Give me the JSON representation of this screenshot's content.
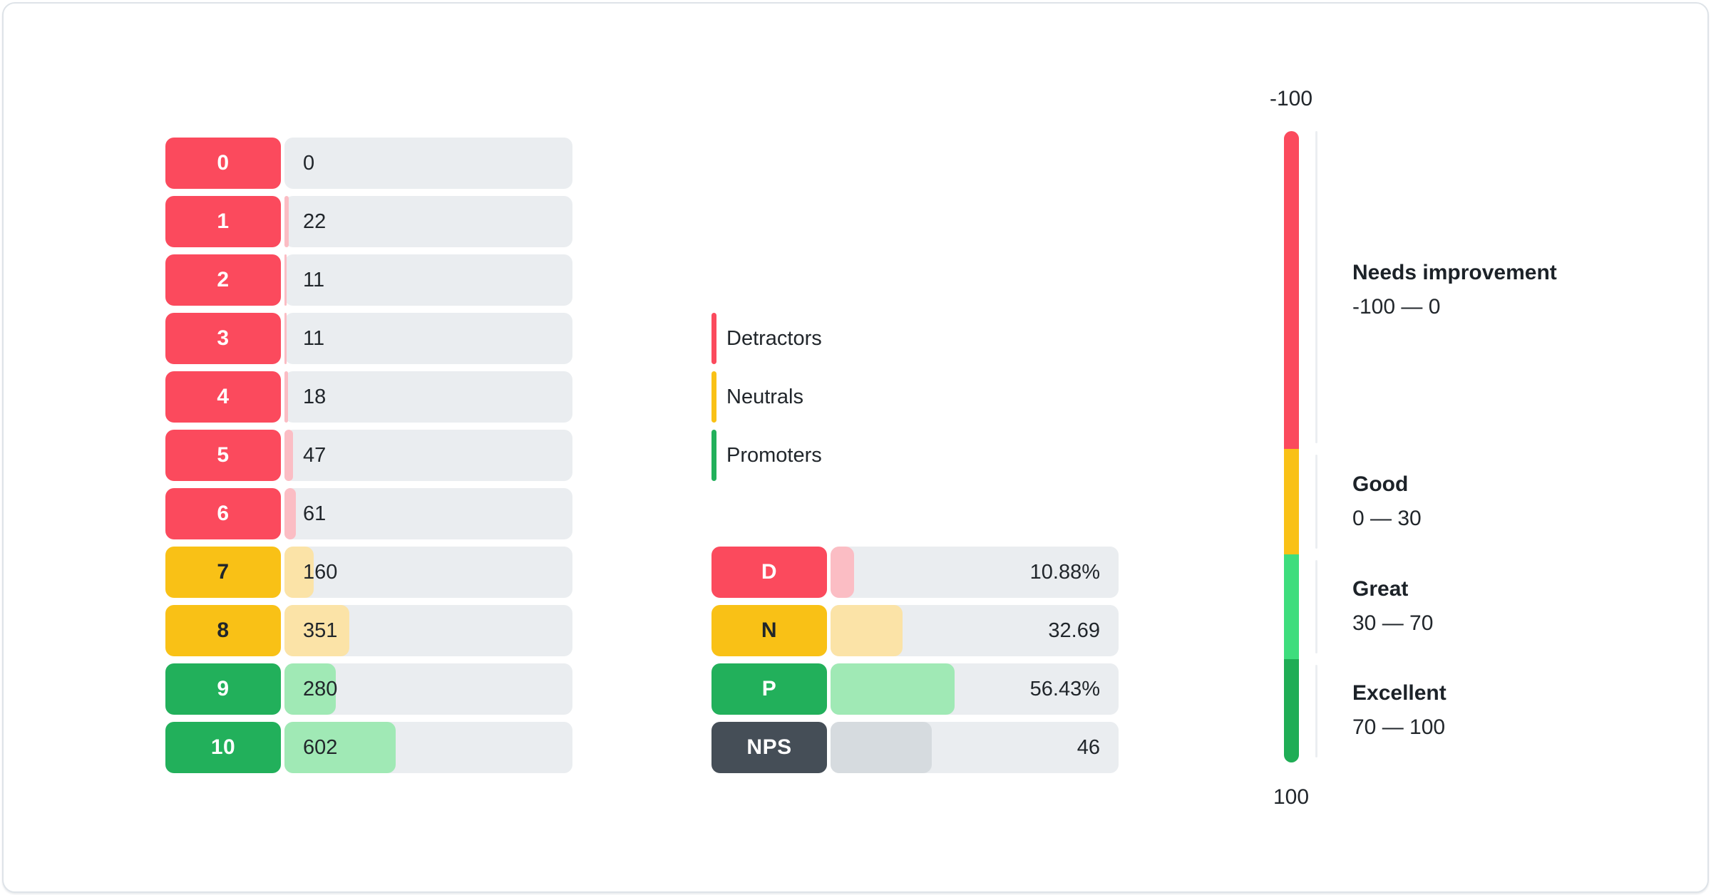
{
  "colors": {
    "detractor": "#FB4A5D",
    "detractor_fill": "#FBBDC4",
    "neutral": "#F9C116",
    "neutral_fill": "#FBE3A7",
    "promoter": "#22B05B",
    "promoter_fill": "#A0E9B5",
    "nps": "#454E57",
    "nps_fill": "#D6DBDF",
    "track": "#EAEDF0",
    "gauge_needs_improvement": "#FB4A5D",
    "gauge_good": "#F9C116",
    "gauge_great": "#3EDD7D",
    "gauge_excellent": "#1FAD55",
    "text": "#21262B"
  },
  "legend": {
    "items": [
      {
        "label": "Detractors",
        "color": "#FB4A5D"
      },
      {
        "label": "Neutrals",
        "color": "#F9C116"
      },
      {
        "label": "Promoters",
        "color": "#22B05B"
      }
    ]
  },
  "chart_data": [
    {
      "type": "bar",
      "title": "NPS score distribution",
      "categories": [
        "0",
        "1",
        "2",
        "3",
        "4",
        "5",
        "6",
        "7",
        "8",
        "9",
        "10"
      ],
      "values": [
        0,
        22,
        11,
        11,
        18,
        47,
        61,
        160,
        351,
        280,
        602
      ],
      "groups": [
        "detractor",
        "detractor",
        "detractor",
        "detractor",
        "detractor",
        "detractor",
        "detractor",
        "neutral",
        "neutral",
        "promoter",
        "promoter"
      ],
      "value_labels": [
        "0",
        "22",
        "11",
        "11",
        "18",
        "47",
        "61",
        "160",
        "351",
        "280",
        "602"
      ],
      "orientation": "horizontal",
      "grid": false
    },
    {
      "type": "bar",
      "title": "NPS summary",
      "rows": [
        {
          "label": "D",
          "group": "detractor",
          "value": 10.88,
          "display": "10.88%"
        },
        {
          "label": "N",
          "group": "neutral",
          "value": 32.69,
          "display": "32.69"
        },
        {
          "label": "P",
          "group": "promoter",
          "value": 56.43,
          "display": "56.43%"
        },
        {
          "label": "NPS",
          "group": "nps",
          "value": 46,
          "display": "46"
        }
      ],
      "orientation": "horizontal",
      "grid": false
    },
    {
      "type": "gauge",
      "orientation": "vertical",
      "min": -100,
      "max": 100,
      "axis_top_label": "-100",
      "axis_bottom_label": "100",
      "zones": [
        {
          "title": "Needs improvement",
          "range": "-100 — 0",
          "from": -100,
          "to": 0,
          "color": "#FB4A5D",
          "bar_fraction": 0.503
        },
        {
          "title": "Good",
          "range": "0 — 30",
          "from": 0,
          "to": 30,
          "color": "#F9C116",
          "bar_fraction": 0.167
        },
        {
          "title": "Great",
          "range": "30 — 70",
          "from": 30,
          "to": 70,
          "color": "#3EDD7D",
          "bar_fraction": 0.166
        },
        {
          "title": "Excellent",
          "range": "70 — 100",
          "from": 70,
          "to": 100,
          "color": "#1FAD55",
          "bar_fraction": 0.164
        }
      ]
    }
  ]
}
